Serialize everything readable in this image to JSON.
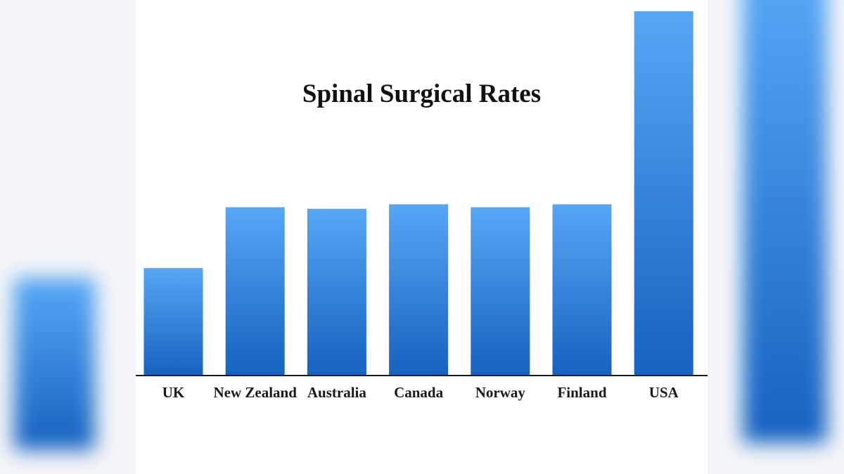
{
  "chart_data": {
    "type": "bar",
    "title": "Spinal Surgical Rates",
    "xlabel": "",
    "ylabel": "",
    "categories": [
      "UK",
      "New Zealand",
      "Australia",
      "Canada",
      "Norway",
      "Finland",
      "USA"
    ],
    "values": [
      29.5,
      46.2,
      45.8,
      47.0,
      46.2,
      47.0,
      100
    ],
    "ylim": [
      0,
      100
    ],
    "grid": false,
    "colors": {
      "bar_top": "#55a7f5",
      "bar_bottom": "#1662c0",
      "axis": "#1a1a1a"
    }
  }
}
